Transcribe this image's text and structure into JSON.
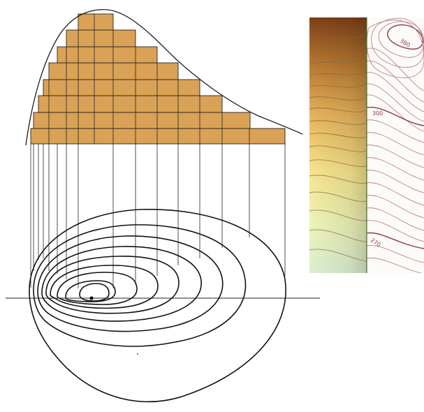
{
  "diagram": {
    "block_fill": "#d9a256",
    "contour_color": "#111111",
    "summit_marker": "dot"
  },
  "inset_map": {
    "left_panel": "shaded-relief",
    "right_panel": "contour-lines",
    "contour_labels": [
      "380",
      "300",
      "270"
    ],
    "colors": {
      "relief_top": "#8a4a1c",
      "relief_mid": "#f3d27a",
      "relief_bottom": "#e6f2d6",
      "contour_line": "#b7878a",
      "index_line": "#8d3a40"
    }
  }
}
